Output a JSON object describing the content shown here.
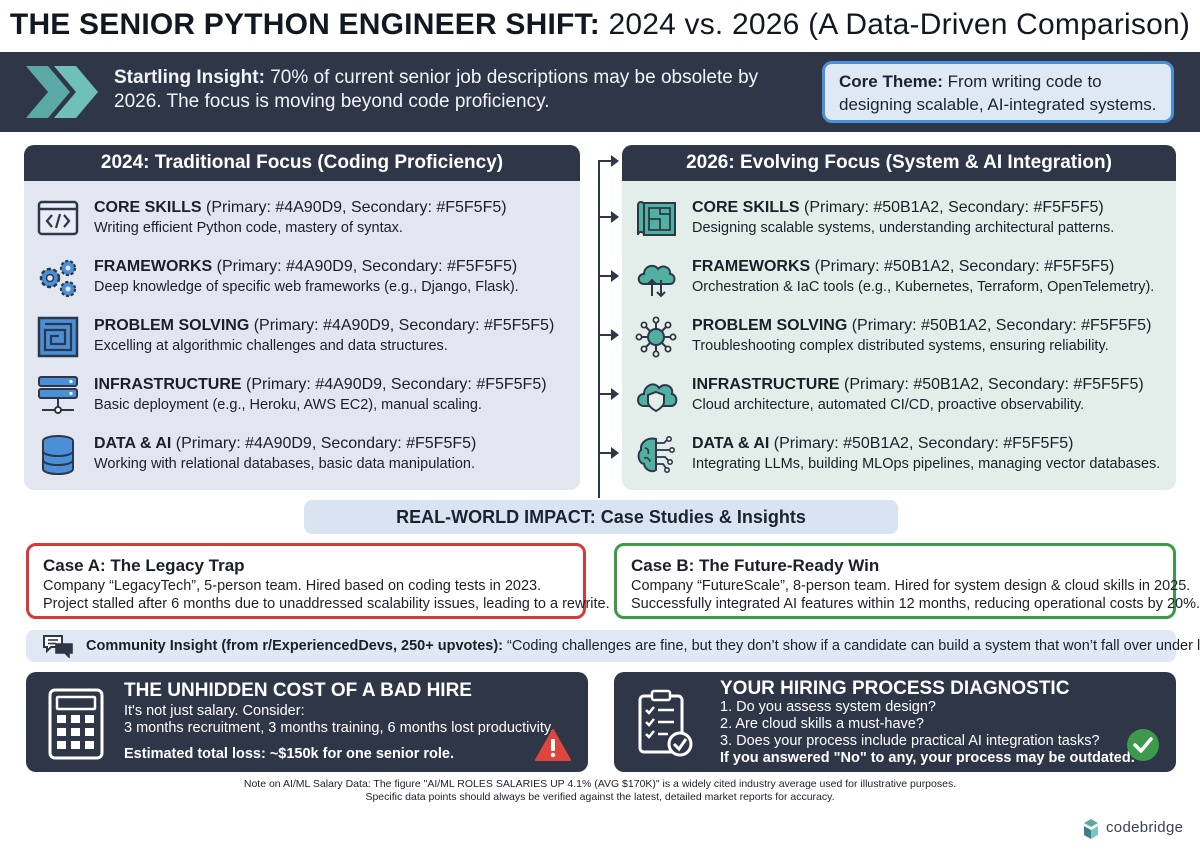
{
  "title": {
    "bold": "THE SENIOR PYTHON ENGINEER SHIFT:",
    "rest": " 2024 vs. 2026 (A Data-Driven Comparison)"
  },
  "banner": {
    "insight_label": "Startling Insight:",
    "insight_text": " 70% of current senior job descriptions may be obsolete by 2026. The focus is moving beyond code proficiency.",
    "theme_label": "Core Theme:",
    "theme_text": " From writing code to designing scalable, AI-integrated systems."
  },
  "left": {
    "heading": "2024: Traditional Focus (Coding Proficiency)",
    "items": [
      {
        "title": "CORE SKILLS",
        "meta": " (Primary: #4A90D9, Secondary: #F5F5F5)",
        "desc": "Writing efficient Python code, mastery of syntax.",
        "icon": "code-window-icon"
      },
      {
        "title": "FRAMEWORKS",
        "meta": " (Primary: #4A90D9, Secondary: #F5F5F5)",
        "desc": "Deep knowledge of specific web frameworks (e.g., Django, Flask).",
        "icon": "gears-icon"
      },
      {
        "title": "PROBLEM SOLVING",
        "meta": " (Primary: #4A90D9, Secondary: #F5F5F5)",
        "desc": "Excelling at algorithmic challenges and data structures.",
        "icon": "maze-icon"
      },
      {
        "title": "INFRASTRUCTURE",
        "meta": " (Primary: #4A90D9, Secondary: #F5F5F5)",
        "desc": "Basic deployment (e.g., Heroku, AWS EC2), manual scaling.",
        "icon": "server-icon"
      },
      {
        "title": "DATA & AI",
        "meta": " (Primary: #4A90D9, Secondary: #F5F5F5)",
        "desc": "Working with relational databases, basic data manipulation.",
        "icon": "database-icon"
      }
    ]
  },
  "right": {
    "heading": "2026: Evolving Focus (System & AI Integration)",
    "items": [
      {
        "title": "CORE SKILLS",
        "meta": " (Primary: #50B1A2, Secondary: #F5F5F5)",
        "desc": "Designing scalable systems, understanding architectural patterns.",
        "icon": "blueprint-icon"
      },
      {
        "title": "FRAMEWORKS",
        "meta": " (Primary: #50B1A2, Secondary: #F5F5F5)",
        "desc": "Orchestration & IaC tools (e.g., Kubernetes, Terraform, OpenTelemetry).",
        "icon": "cloud-transfer-icon"
      },
      {
        "title": "PROBLEM SOLVING",
        "meta": " (Primary: #50B1A2, Secondary: #F5F5F5)",
        "desc": "Troubleshooting complex distributed systems, ensuring reliability.",
        "icon": "network-hub-icon"
      },
      {
        "title": "INFRASTRUCTURE",
        "meta": " (Primary: #50B1A2, Secondary: #F5F5F5)",
        "desc": "Cloud architecture, automated CI/CD, proactive observability.",
        "icon": "cloud-shield-icon"
      },
      {
        "title": "DATA & AI",
        "meta": " (Primary: #50B1A2, Secondary: #F5F5F5)",
        "desc": "Integrating LLMs, building MLOps pipelines, managing vector databases.",
        "icon": "brain-circuit-icon"
      }
    ]
  },
  "impact_heading": "REAL-WORLD IMPACT: Case Studies & Insights",
  "case_a": {
    "title": "Case A: The Legacy Trap",
    "line1": "Company “LegacyTech”, 5-person team. Hired based on coding tests in 2023.",
    "line2": "Project stalled after 6 months due to unaddressed scalability issues, leading to a rewrite."
  },
  "case_b": {
    "title": "Case B: The Future-Ready Win",
    "line1": "Company “FutureScale”, 8-person team. Hired for system design & cloud skills in 2025.",
    "line2": "Successfully integrated AI features within 12 months, reducing operational costs by 20%."
  },
  "community": {
    "label": "Community Insight (from r/ExperiencedDevs, 250+ upvotes):",
    "quote": " “Coding challenges are fine, but they don’t show if a candidate can build a system that won’t fall over under load.”"
  },
  "cost": {
    "title": "THE UNHIDDEN COST OF A BAD HIRE",
    "line1": "It's not just salary. Consider:",
    "line2": "3 months recruitment, 3 months training, 6 months lost productivity.",
    "line3": "Estimated total loss: ~$150k for one senior role."
  },
  "diagnostic": {
    "title": "YOUR HIRING PROCESS DIAGNOSTIC",
    "q1": "1. Do you assess system design?",
    "q2": "2. Are cloud skills a must-have?",
    "q3": "3. Does your process include practical AI integration tasks?",
    "verdict": "If you answered \"No\" to any, your process may be outdated."
  },
  "note": {
    "line1": "Note on AI/ML Salary Data: The figure \"AI/ML ROLES SALARIES UP 4.1% (AVG $170K)\" is a widely cited industry average used for illustrative purposes.",
    "line2": "Specific data points should always be verified against the latest, detailed market reports for accuracy."
  },
  "brand": "codebridge",
  "colors": {
    "dark": "#2f3647",
    "blue": "#4a90d9",
    "teal": "#50b1a2",
    "red": "#d33a3a",
    "green": "#3d9a4a"
  }
}
